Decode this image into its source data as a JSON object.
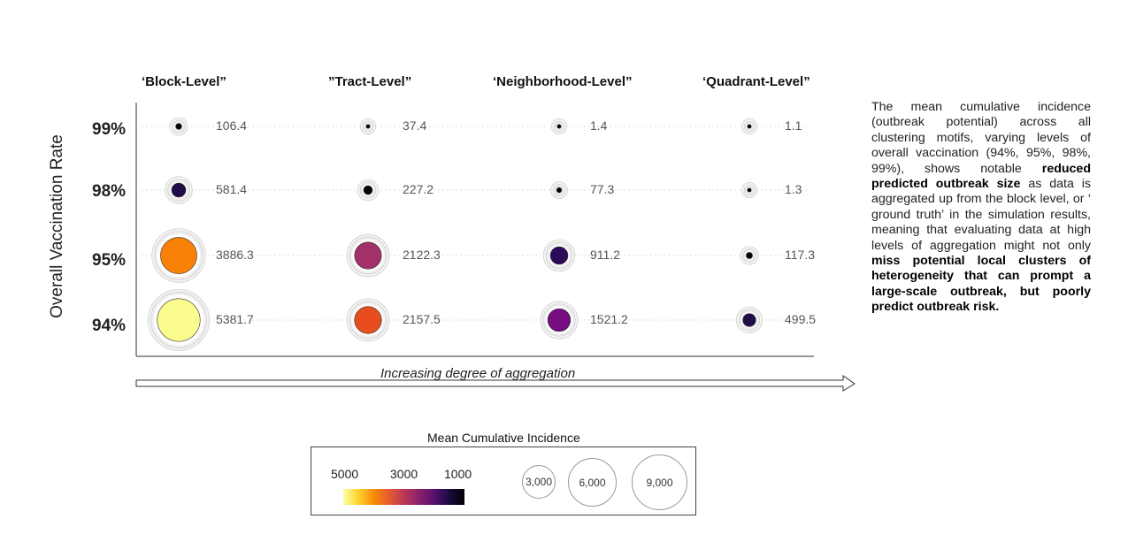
{
  "columns": [
    "‘Block-Level”",
    "”Tract-Level”",
    "‘Neighborhood-Level”",
    "‘Quadrant-Level”"
  ],
  "y_axis_title": "Overall Vaccination Rate",
  "rows": [
    "99%",
    "98%",
    "95%",
    "94%"
  ],
  "x_axis_title": "Increasing degree of aggregation",
  "chart_data": {
    "type": "scatter",
    "title": "",
    "xlabel": "Increasing degree of aggregation",
    "ylabel": "Overall Vaccination Rate",
    "categories_x": [
      "‘Block-Level”",
      "”Tract-Level”",
      "‘Neighborhood-Level”",
      "‘Quadrant-Level”"
    ],
    "categories_y": [
      "99%",
      "98%",
      "95%",
      "94%"
    ],
    "color_scale": "inferno",
    "color_range": [
      0,
      5500
    ],
    "values": [
      [
        106.4,
        37.4,
        1.4,
        1.1
      ],
      [
        581.4,
        227.2,
        77.3,
        1.3
      ],
      [
        3886.3,
        2122.3,
        911.2,
        117.3
      ],
      [
        5381.7,
        2157.5,
        1521.2,
        499.5
      ]
    ],
    "labels": [
      [
        "106.4",
        "37.4",
        "1.4",
        "1.1"
      ],
      [
        "581.4",
        "227.2",
        "77.3",
        "1.3"
      ],
      [
        "3886.3",
        "2122.3",
        "911.2",
        "117.3"
      ],
      [
        "5381.7",
        "2157.5",
        "1521.2",
        "499.5"
      ]
    ],
    "colors": [
      [
        "#000004",
        "#000004",
        "#000004",
        "#000004"
      ],
      [
        "#1f0c48",
        "#000004",
        "#000004",
        "#000004"
      ],
      [
        "#f98107",
        "#a4306a",
        "#2c0b58",
        "#000004"
      ],
      [
        "#fafc8e",
        "#e84d1e",
        "#760c82",
        "#1f0c48"
      ]
    ],
    "legend": {
      "title": "Mean Cumulative Incidence",
      "colorbar_ticks": [
        "5000",
        "3000",
        "1000"
      ],
      "size_ticks": [
        "3,000",
        "6,000",
        "9,000"
      ]
    }
  },
  "side_text": {
    "part1": "The mean cumulative incidence (outbreak potential) across all clustering motifs, varying levels of overall vaccination (94%, 95%, 98%, 99%), shows notable ",
    "bold1": "reduced predicted outbreak size",
    "part2": " as data is aggregated up from the block level, or ‘ ground truth’ in the simulation results, meaning that evaluating data at high levels of aggregation might not only ",
    "bold2": "miss potential local clusters of heterogeneity that can prompt a large-scale outbreak, but poorly predict outbreak risk."
  }
}
